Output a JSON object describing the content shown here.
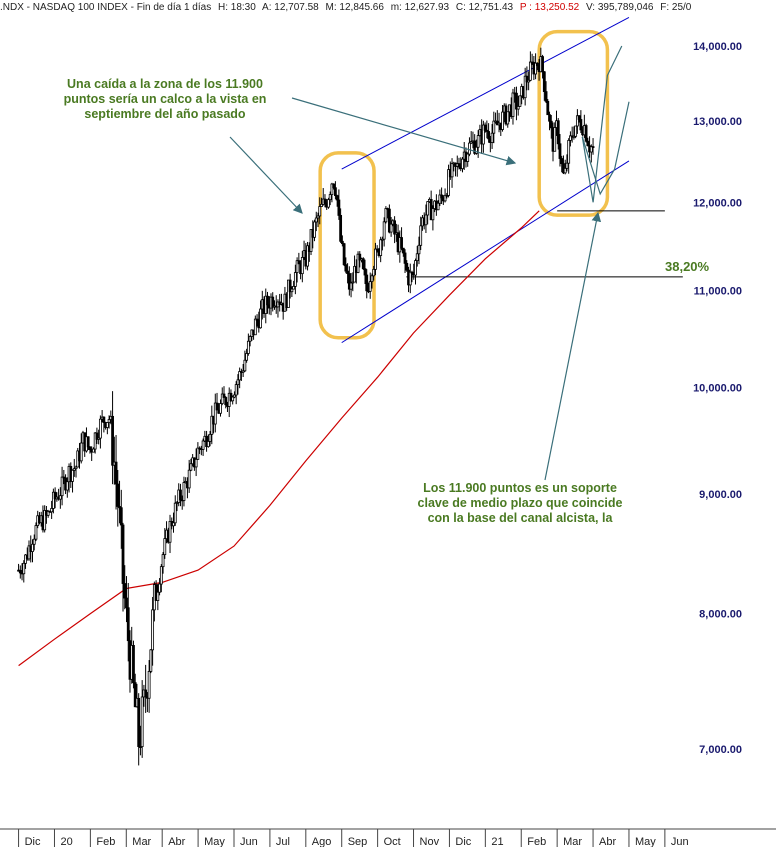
{
  "header": {
    "symbol": ".NDX - NASDAQ 100 INDEX - Fin de día 1 días",
    "h_time": "H: 18:30",
    "open": "A: 12,707.58",
    "high": "M: 12,845.66",
    "low": "m: 12,627.93",
    "close": "C: 12,751.43",
    "p": "P : 13,250.52",
    "volume": "V: 395,789,046",
    "f": "F: 25/0"
  },
  "colors": {
    "candles": "#000000",
    "moving_average": "#cc0000",
    "channel": "#0000cc",
    "support_lines": "#000000",
    "highlight": "#f2c14e",
    "annotation_text": "#4a7a22",
    "arrows": "#3a6f7a",
    "axis_labels": "#1a1a6e"
  },
  "chart_data": {
    "type": "candlestick",
    "title": ".NDX - NASDAQ 100 INDEX",
    "xlabel": "",
    "ylabel": "",
    "scale": "log",
    "ylim": [
      6600,
      14500
    ],
    "y_ticks": [
      {
        "value": 7000,
        "label": "7,000.00"
      },
      {
        "value": 8000,
        "label": "8,000.00"
      },
      {
        "value": 9000,
        "label": "9,000.00"
      },
      {
        "value": 10000,
        "label": "10,000.00"
      },
      {
        "value": 11000,
        "label": "11,000.00"
      },
      {
        "value": 12000,
        "label": "12,000.00"
      },
      {
        "value": 13000,
        "label": "13,000.00"
      },
      {
        "value": 14000,
        "label": "14,000.00"
      }
    ],
    "x_ticks": [
      "Dic",
      "20",
      "Feb",
      "Mar",
      "Abr",
      "May",
      "Jun",
      "Jul",
      "Ago",
      "Sep",
      "Oct",
      "Nov",
      "Dic",
      "21",
      "Feb",
      "Mar",
      "Abr",
      "May",
      "Jun"
    ],
    "x_tick_months": [
      0,
      1,
      2,
      3,
      4,
      5,
      6,
      7,
      8,
      9,
      10,
      11,
      12,
      13,
      14,
      15,
      16,
      17,
      18
    ],
    "price_path": [
      [
        0.0,
        8350
      ],
      [
        0.2,
        8450
      ],
      [
        0.4,
        8650
      ],
      [
        0.6,
        8750
      ],
      [
        0.8,
        8800
      ],
      [
        1.0,
        8950
      ],
      [
        1.2,
        9050
      ],
      [
        1.4,
        9200
      ],
      [
        1.6,
        9250
      ],
      [
        1.8,
        9500
      ],
      [
        2.0,
        9400
      ],
      [
        2.2,
        9600
      ],
      [
        2.4,
        9700
      ],
      [
        2.55,
        9700
      ],
      [
        2.65,
        9350
      ],
      [
        2.8,
        8800
      ],
      [
        2.9,
        8300
      ],
      [
        3.0,
        7950
      ],
      [
        3.1,
        7700
      ],
      [
        3.2,
        7400
      ],
      [
        3.35,
        7050
      ],
      [
        3.5,
        7300
      ],
      [
        3.65,
        7700
      ],
      [
        3.8,
        8100
      ],
      [
        4.0,
        8450
      ],
      [
        4.2,
        8700
      ],
      [
        4.4,
        8900
      ],
      [
        4.6,
        9050
      ],
      [
        4.8,
        9200
      ],
      [
        5.0,
        9400
      ],
      [
        5.2,
        9500
      ],
      [
        5.4,
        9700
      ],
      [
        5.6,
        9800
      ],
      [
        5.8,
        9900
      ],
      [
        6.0,
        10000
      ],
      [
        6.2,
        10150
      ],
      [
        6.4,
        10400
      ],
      [
        6.6,
        10650
      ],
      [
        6.8,
        10800
      ],
      [
        7.0,
        10900
      ],
      [
        7.2,
        10950
      ],
      [
        7.4,
        10850
      ],
      [
        7.6,
        11100
      ],
      [
        7.8,
        11250
      ],
      [
        8.0,
        11350
      ],
      [
        8.2,
        11650
      ],
      [
        8.4,
        11900
      ],
      [
        8.6,
        12050
      ],
      [
        8.75,
        12300
      ],
      [
        8.85,
        12150
      ],
      [
        8.95,
        11600
      ],
      [
        9.1,
        11200
      ],
      [
        9.25,
        11000
      ],
      [
        9.4,
        11300
      ],
      [
        9.55,
        11250
      ],
      [
        9.7,
        11000
      ],
      [
        9.85,
        11300
      ],
      [
        10.0,
        11400
      ],
      [
        10.2,
        11850
      ],
      [
        10.35,
        11750
      ],
      [
        10.5,
        11600
      ],
      [
        10.65,
        11450
      ],
      [
        10.85,
        11150
      ],
      [
        11.0,
        11150
      ],
      [
        11.2,
        11750
      ],
      [
        11.4,
        11900
      ],
      [
        11.6,
        11950
      ],
      [
        11.8,
        12050
      ],
      [
        12.0,
        12300
      ],
      [
        12.2,
        12400
      ],
      [
        12.4,
        12600
      ],
      [
        12.6,
        12700
      ],
      [
        12.8,
        12750
      ],
      [
        13.0,
        12900
      ],
      [
        13.2,
        12850
      ],
      [
        13.4,
        13000
      ],
      [
        13.6,
        13100
      ],
      [
        13.8,
        13250
      ],
      [
        13.95,
        13200
      ],
      [
        14.1,
        13500
      ],
      [
        14.3,
        13700
      ],
      [
        14.5,
        13800
      ],
      [
        14.6,
        13650
      ],
      [
        14.7,
        13300
      ],
      [
        14.8,
        12900
      ],
      [
        14.9,
        12700
      ],
      [
        15.0,
        12950
      ],
      [
        15.1,
        12500
      ],
      [
        15.2,
        12250
      ],
      [
        15.3,
        12600
      ],
      [
        15.45,
        12900
      ],
      [
        15.6,
        13000
      ],
      [
        15.75,
        12950
      ],
      [
        15.9,
        12700
      ],
      [
        16.0,
        12650
      ]
    ],
    "moving_average": [
      [
        0.0,
        7600
      ],
      [
        1.0,
        7800
      ],
      [
        2.0,
        8000
      ],
      [
        3.0,
        8200
      ],
      [
        4.0,
        8250
      ],
      [
        5.0,
        8350
      ],
      [
        6.0,
        8550
      ],
      [
        7.0,
        8900
      ],
      [
        8.0,
        9300
      ],
      [
        9.0,
        9700
      ],
      [
        10.0,
        10100
      ],
      [
        11.0,
        10550
      ],
      [
        12.0,
        10950
      ],
      [
        13.0,
        11350
      ],
      [
        14.0,
        11700
      ],
      [
        14.5,
        11900
      ]
    ],
    "channel": {
      "upper": [
        [
          9.0,
          12400
        ],
        [
          17.0,
          14400
        ]
      ],
      "lower": [
        [
          9.0,
          10450
        ],
        [
          17.0,
          12500
        ]
      ]
    },
    "support_lines": [
      {
        "value": 11900,
        "from_month": 15.0,
        "to_month": 18.0
      },
      {
        "value": 11150,
        "from_month": 10.8,
        "to_month": 18.5
      }
    ],
    "fib_label": "38,20%",
    "fib_level": 11150,
    "projection_lines": [
      [
        [
          15.7,
          12800
        ],
        [
          16.0,
          12000
        ],
        [
          16.4,
          13600
        ],
        [
          16.8,
          14000
        ]
      ],
      [
        [
          15.7,
          12800
        ],
        [
          16.2,
          12100
        ],
        [
          16.6,
          12400
        ],
        [
          17.0,
          13250
        ]
      ]
    ],
    "highlight_zones": [
      {
        "from_month": 8.4,
        "to_month": 9.9,
        "from_value": 10500,
        "to_value": 12600
      },
      {
        "from_month": 14.5,
        "to_month": 16.4,
        "from_value": 11850,
        "to_value": 14200
      }
    ],
    "annotations": [
      {
        "lines": [
          "Una caída a la zona de los 11.900",
          "puntos sería un calco a la vista en",
          "septiembre del año pasado"
        ]
      },
      {
        "lines": [
          "Los 11.900 puntos es un soporte",
          "clave de medio plazo que coincide",
          "con la base del canal alcista, la"
        ]
      }
    ]
  }
}
